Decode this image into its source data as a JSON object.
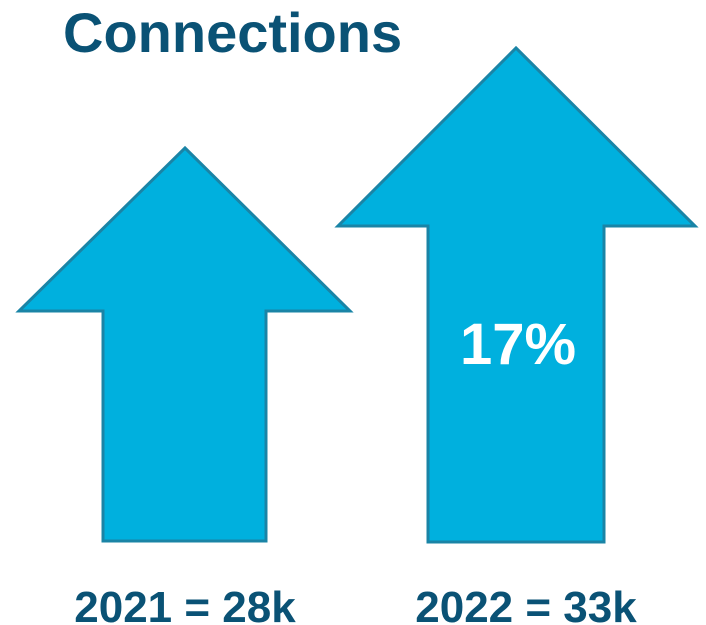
{
  "title": "Connections",
  "colors": {
    "title_text": "#0a5275",
    "arrow_fill": "#00b0de",
    "arrow_stroke": "#1a84a6",
    "percent_text": "#ffffff"
  },
  "arrows": [
    {
      "year_label": "2021 = 28k"
    },
    {
      "year_label": "2022 = 33k",
      "growth_label": "17%"
    }
  ]
}
